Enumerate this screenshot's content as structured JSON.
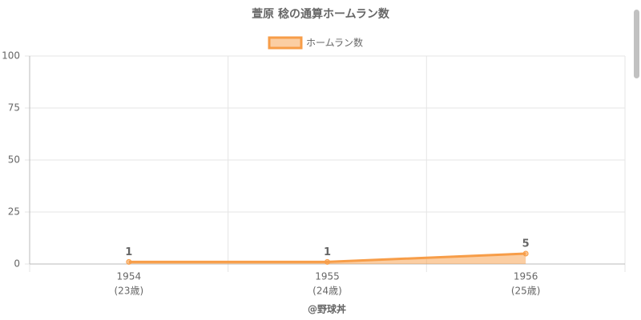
{
  "chart_data": {
    "type": "line",
    "title": "萱原 稔の通算ホームラン数",
    "categories": [
      "1954",
      "1955",
      "1956"
    ],
    "category_sublabels": [
      "(23歳)",
      "(24歳)",
      "(25歳)"
    ],
    "x_label": "@野球丼",
    "series": [
      {
        "name": "ホームラン数",
        "color": "#f79d48",
        "values": [
          1,
          1,
          5
        ]
      }
    ],
    "ylim": [
      0,
      100
    ],
    "yticks": [
      0,
      25,
      50,
      75,
      100
    ],
    "grid": true,
    "fill": true,
    "legend": "top"
  }
}
